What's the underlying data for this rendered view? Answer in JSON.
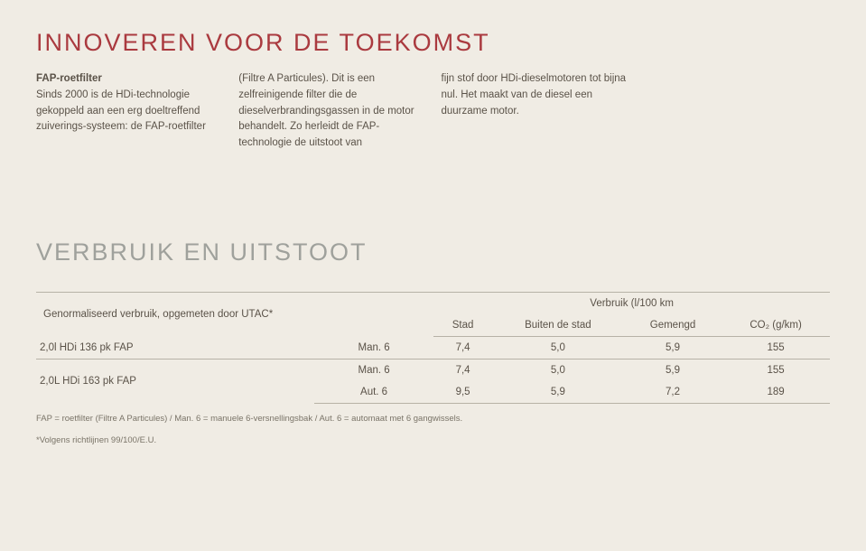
{
  "heading1": "INNOVEREN VOOR DE TOEKOMST",
  "para": {
    "c1_lead": "FAP-roetfilter",
    "c1_rest": "Sinds 2000 is de HDi-technologie gekoppeld aan een erg doeltreffend zuiverings-systeem: de FAP-roetfilter",
    "c2": "(Filtre A Particules). Dit is een zelfreinigende filter die de dieselverbrandingsgassen in de motor behandelt. Zo herleidt de FAP-technologie de uitstoot van",
    "c3": "fijn stof door HDi-dieselmotoren tot bijna nul. Het maakt van de diesel een duurzame motor."
  },
  "heading2": "VERBRUIK EN UITSTOOT",
  "table": {
    "rowlabel": "Genormaliseerd verbruik, opgemeten door UTAC*",
    "group_header": "Verbruik (l/100 km",
    "cols": [
      "Stad",
      "Buiten de stad",
      "Gemengd",
      "CO₂ (g/km)"
    ],
    "rows": [
      {
        "model": "2,0l HDi 136 pk FAP",
        "trans": "Man. 6",
        "vals": [
          "7,4",
          "5,0",
          "5,9",
          "155"
        ]
      },
      {
        "model": "2,0L HDi 163 pk FAP",
        "trans": "Man. 6",
        "vals": [
          "7,4",
          "5,0",
          "5,9",
          "155"
        ]
      },
      {
        "model": "",
        "trans": "Aut. 6",
        "vals": [
          "9,5",
          "5,9",
          "7,2",
          "189"
        ]
      }
    ]
  },
  "foot1": "FAP = roetfilter (Filtre A Particules) / Man. 6 = manuele 6-versnellingsbak / Aut. 6 = automaat met 6 gangwissels.",
  "foot2": "*Volgens richtlijnen 99/100/E.U.",
  "colors": {
    "bg": "#f0ece4",
    "accent": "#aa3a3f",
    "grey_head": "#9fa19c",
    "text": "#5a5248",
    "rule": "#b7b2a6"
  }
}
